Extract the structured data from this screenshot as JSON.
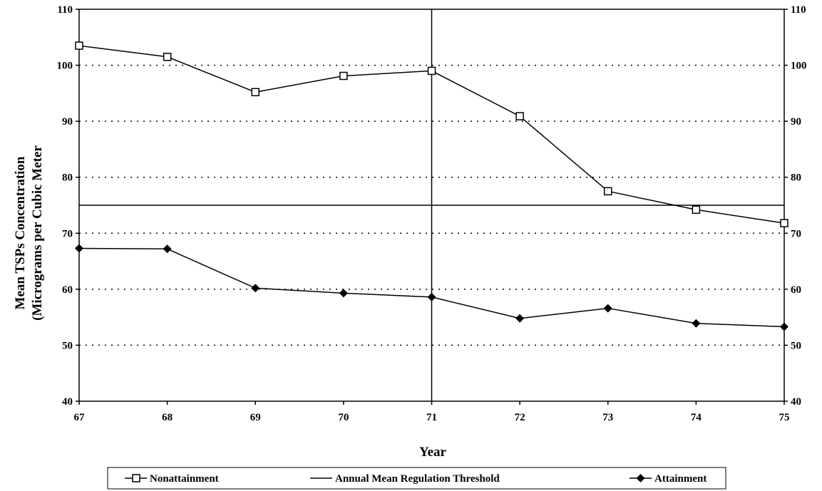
{
  "chart_data": {
    "type": "line",
    "x": [
      67,
      68,
      69,
      70,
      71,
      72,
      73,
      74,
      75
    ],
    "xlabel": "Year",
    "ylabel_line1": "Mean TSPs Concentration",
    "ylabel_line2": "(Micrograms per Cubic Meter",
    "ylim": [
      40,
      110
    ],
    "yticks": [
      40,
      50,
      60,
      70,
      80,
      90,
      100,
      110
    ],
    "xlim": [
      67,
      75
    ],
    "grid": "horizontal dotted",
    "secondary_y_axis": true,
    "vertical_marker_x": 71,
    "series": [
      {
        "name": "Nonattainment",
        "marker": "open-square",
        "values": [
          103.5,
          101.5,
          95.2,
          98.1,
          99.0,
          90.9,
          77.5,
          74.2,
          71.8
        ]
      },
      {
        "name": "Annual Mean Regulation Threshold",
        "marker": "none",
        "values": [
          75,
          75,
          75,
          75,
          75,
          75,
          75,
          75,
          75
        ]
      },
      {
        "name": "Attainment",
        "marker": "filled-diamond",
        "values": [
          67.3,
          67.2,
          60.2,
          59.3,
          58.6,
          54.8,
          56.6,
          53.9,
          53.3
        ]
      }
    ],
    "legend_position": "bottom"
  },
  "colors": {
    "line": "#000000",
    "background": "#ffffff"
  }
}
